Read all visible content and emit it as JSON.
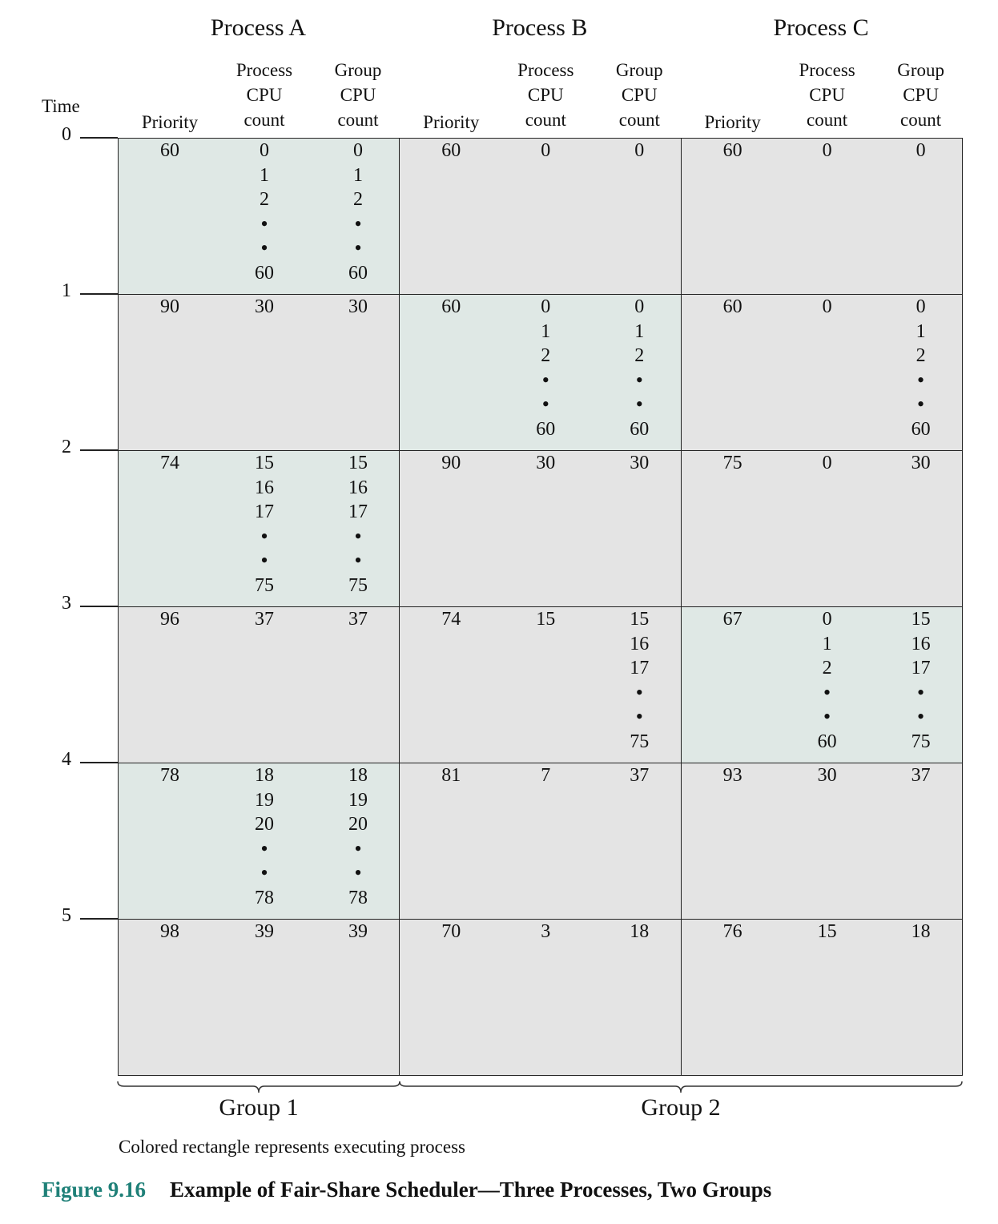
{
  "time_label": "Time",
  "time_ticks": [
    "0",
    "1",
    "2",
    "3",
    "4",
    "5"
  ],
  "processes": [
    {
      "name": "Process A",
      "headers": {
        "priority": "Priority",
        "process_cpu": [
          "Process",
          "CPU",
          "count"
        ],
        "group_cpu": [
          "Group",
          "CPU",
          "count"
        ]
      }
    },
    {
      "name": "Process B",
      "headers": {
        "priority": "Priority",
        "process_cpu": [
          "Process",
          "CPU",
          "count"
        ],
        "group_cpu": [
          "Group",
          "CPU",
          "count"
        ]
      }
    },
    {
      "name": "Process C",
      "headers": {
        "priority": "Priority",
        "process_cpu": [
          "Process",
          "CPU",
          "count"
        ],
        "group_cpu": [
          "Group",
          "CPU",
          "count"
        ]
      }
    }
  ],
  "rows": [
    {
      "cells": [
        {
          "executing": true,
          "priority": [
            "60"
          ],
          "process_cpu": [
            "0",
            "1",
            "2",
            "•",
            "•",
            "60"
          ],
          "group_cpu": [
            "0",
            "1",
            "2",
            "•",
            "•",
            "60"
          ]
        },
        {
          "executing": false,
          "priority": [
            "60"
          ],
          "process_cpu": [
            "0"
          ],
          "group_cpu": [
            "0"
          ]
        },
        {
          "executing": false,
          "priority": [
            "60"
          ],
          "process_cpu": [
            "0"
          ],
          "group_cpu": [
            "0"
          ]
        }
      ]
    },
    {
      "cells": [
        {
          "executing": false,
          "priority": [
            "90"
          ],
          "process_cpu": [
            "30"
          ],
          "group_cpu": [
            "30"
          ]
        },
        {
          "executing": true,
          "priority": [
            "60"
          ],
          "process_cpu": [
            "0",
            "1",
            "2",
            "•",
            "•",
            "60"
          ],
          "group_cpu": [
            "0",
            "1",
            "2",
            "•",
            "•",
            "60"
          ]
        },
        {
          "executing": false,
          "priority": [
            "60"
          ],
          "process_cpu": [
            "0"
          ],
          "group_cpu": [
            "0",
            "1",
            "2",
            "•",
            "•",
            "60"
          ]
        }
      ]
    },
    {
      "cells": [
        {
          "executing": true,
          "priority": [
            "74"
          ],
          "process_cpu": [
            "15",
            "16",
            "17",
            "•",
            "•",
            "75"
          ],
          "group_cpu": [
            "15",
            "16",
            "17",
            "•",
            "•",
            "75"
          ]
        },
        {
          "executing": false,
          "priority": [
            "90"
          ],
          "process_cpu": [
            "30"
          ],
          "group_cpu": [
            "30"
          ]
        },
        {
          "executing": false,
          "priority": [
            "75"
          ],
          "process_cpu": [
            "0"
          ],
          "group_cpu": [
            "30"
          ]
        }
      ]
    },
    {
      "cells": [
        {
          "executing": false,
          "priority": [
            "96"
          ],
          "process_cpu": [
            "37"
          ],
          "group_cpu": [
            "37"
          ]
        },
        {
          "executing": false,
          "priority": [
            "74"
          ],
          "process_cpu": [
            "15"
          ],
          "group_cpu": [
            "15",
            "16",
            "17",
            "•",
            "•",
            "75"
          ]
        },
        {
          "executing": true,
          "priority": [
            "67"
          ],
          "process_cpu": [
            "0",
            "1",
            "2",
            "•",
            "•",
            "60"
          ],
          "group_cpu": [
            "15",
            "16",
            "17",
            "•",
            "•",
            "75"
          ]
        }
      ]
    },
    {
      "cells": [
        {
          "executing": true,
          "priority": [
            "78"
          ],
          "process_cpu": [
            "18",
            "19",
            "20",
            "•",
            "•",
            "78"
          ],
          "group_cpu": [
            "18",
            "19",
            "20",
            "•",
            "•",
            "78"
          ]
        },
        {
          "executing": false,
          "priority": [
            "81"
          ],
          "process_cpu": [
            "7"
          ],
          "group_cpu": [
            "37"
          ]
        },
        {
          "executing": false,
          "priority": [
            "93"
          ],
          "process_cpu": [
            "30"
          ],
          "group_cpu": [
            "37"
          ]
        }
      ]
    },
    {
      "cells": [
        {
          "executing": false,
          "priority": [
            "98"
          ],
          "process_cpu": [
            "39"
          ],
          "group_cpu": [
            "39"
          ]
        },
        {
          "executing": false,
          "priority": [
            "70"
          ],
          "process_cpu": [
            "3"
          ],
          "group_cpu": [
            "18"
          ]
        },
        {
          "executing": false,
          "priority": [
            "76"
          ],
          "process_cpu": [
            "15"
          ],
          "group_cpu": [
            "18"
          ]
        }
      ]
    }
  ],
  "groups": [
    "Group 1",
    "Group 2"
  ],
  "note": "Colored rectangle represents executing process",
  "caption": {
    "number": "Figure 9.16",
    "title": "Example of Fair-Share Scheduler—Three Processes, Two Groups"
  },
  "colors": {
    "executing": "#dfe8e5",
    "idle": "#e4e4e4",
    "caption_number": "#1f8078",
    "border": "#222222"
  }
}
